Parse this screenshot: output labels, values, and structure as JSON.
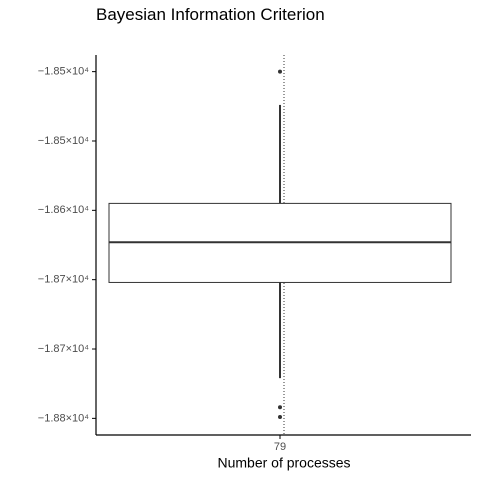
{
  "chart_data": {
    "type": "box",
    "title": "Bayesian Information Criterion",
    "x_label": "Number of processes",
    "categories": [
      "79"
    ],
    "boxes": [
      {
        "whisker_low": -18721,
        "q1": -18652,
        "median": -18623,
        "q3": -18595,
        "whisker_high": -18524,
        "outliers": [
          -18500,
          -18742,
          -18749
        ]
      }
    ],
    "color": "#333333",
    "ylim": [
      -18762,
      -18488
    ],
    "yticks": [
      {
        "value": -18500,
        "label": "−1.85×10⁴"
      },
      {
        "value": -18550,
        "label": "−1.85×10⁴"
      },
      {
        "value": -18600,
        "label": "−1.86×10⁴"
      },
      {
        "value": -18650,
        "label": "−1.87×10⁴"
      },
      {
        "value": -18700,
        "label": "−1.87×10⁴"
      },
      {
        "value": -18750,
        "label": "−1.88×10⁴"
      }
    ]
  }
}
